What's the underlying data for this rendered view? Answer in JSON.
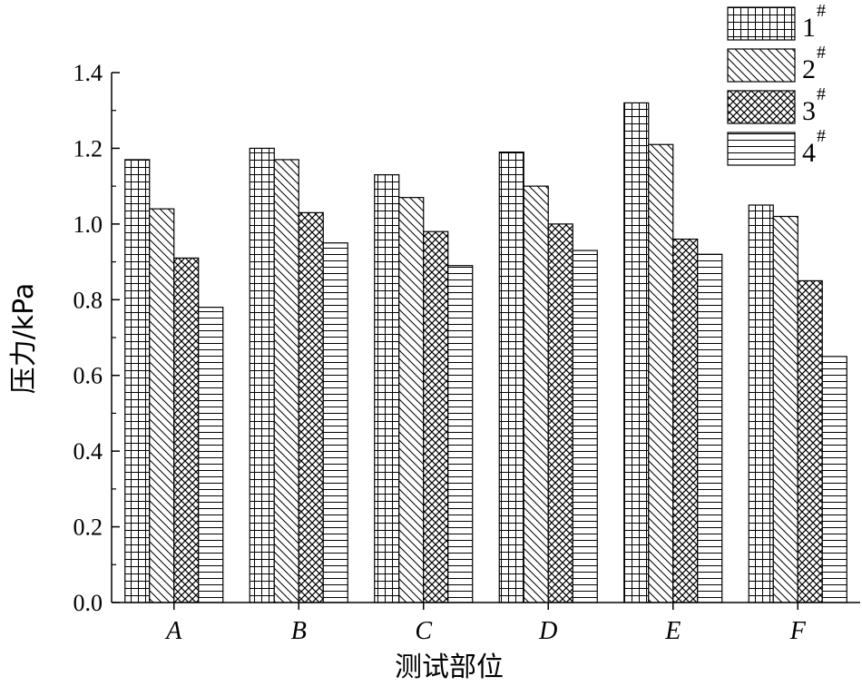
{
  "chart_data": {
    "type": "bar",
    "xlabel": "测试部位",
    "ylabel": "压力/kPa",
    "ylim": [
      0,
      1.4
    ],
    "yticks": [
      "0.0",
      "0.2",
      "0.4",
      "0.6",
      "0.8",
      "1.0",
      "1.2",
      "1.4"
    ],
    "categories": [
      "A",
      "B",
      "C",
      "D",
      "E",
      "F"
    ],
    "legend_position": "top-right",
    "series": [
      {
        "name": "1",
        "name_sup": "#",
        "pattern": "grid",
        "values": [
          1.17,
          1.2,
          1.13,
          1.19,
          1.32,
          1.05
        ]
      },
      {
        "name": "2",
        "name_sup": "#",
        "pattern": "diagonal",
        "values": [
          1.04,
          1.17,
          1.07,
          1.1,
          1.21,
          1.02
        ]
      },
      {
        "name": "3",
        "name_sup": "#",
        "pattern": "crosshatch",
        "values": [
          0.91,
          1.03,
          0.98,
          1.0,
          0.96,
          0.85
        ]
      },
      {
        "name": "4",
        "name_sup": "#",
        "pattern": "horizontal",
        "values": [
          0.78,
          0.95,
          0.89,
          0.93,
          0.92,
          0.65
        ]
      }
    ]
  }
}
